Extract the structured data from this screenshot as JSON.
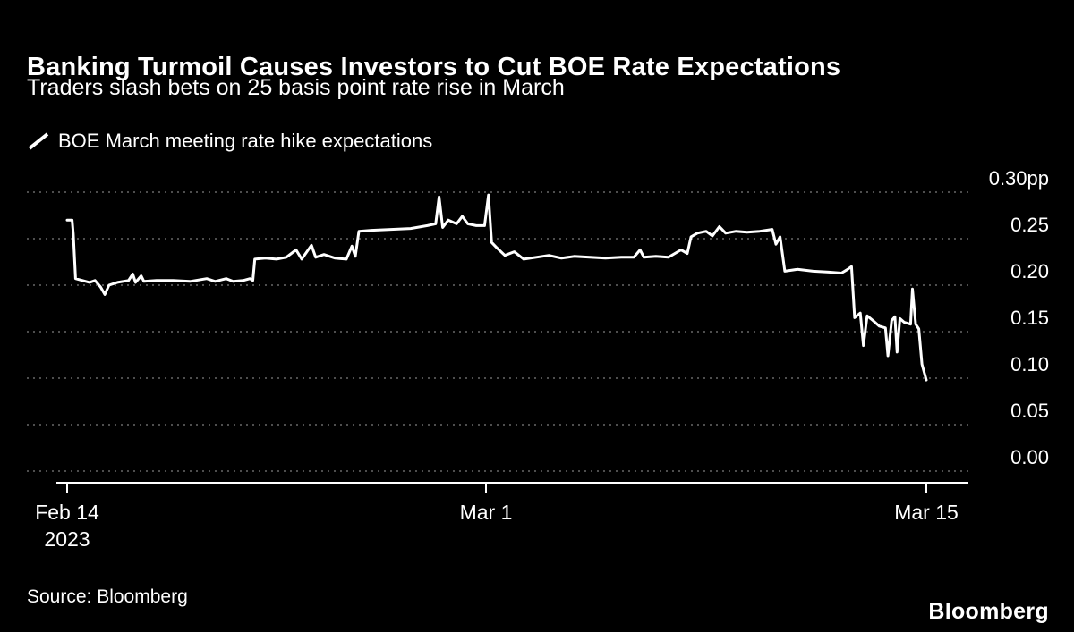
{
  "header": {
    "title": "Banking Turmoil Causes Investors to Cut BOE Rate Expectations",
    "subtitle": "Traders slash bets on 25 basis point rate rise in March"
  },
  "legend": {
    "label": "BOE March meeting rate hike expectations",
    "icon": "diagonal-line-sample-icon"
  },
  "footer": {
    "source": "Source: Bloomberg",
    "logo": "Bloomberg"
  },
  "colors": {
    "background": "#000000",
    "text": "#ffffff",
    "line": "#ffffff",
    "gridline": "#4e4e4e"
  },
  "chart_data": {
    "type": "line",
    "title": "Banking Turmoil Causes Investors to Cut BOE Rate Expectations",
    "subtitle": "Traders slash bets on 25 basis point rate rise in March",
    "legend_entries": [
      "BOE March meeting rate hike expectations"
    ],
    "ylabel": "pp",
    "ylim": [
      0.0,
      0.3
    ],
    "grid": "horizontal-dotted",
    "x_unit": "days since Feb 14, 2023",
    "y_ticks": [
      {
        "value": 0.3,
        "label": "0.30pp"
      },
      {
        "value": 0.25,
        "label": "0.25"
      },
      {
        "value": 0.2,
        "label": "0.20"
      },
      {
        "value": 0.15,
        "label": "0.15"
      },
      {
        "value": 0.1,
        "label": "0.10"
      },
      {
        "value": 0.05,
        "label": "0.05"
      },
      {
        "value": 0.0,
        "label": "0.00"
      }
    ],
    "x_ticks": [
      {
        "day": 0,
        "label": "Feb 14",
        "sublabel": "2023"
      },
      {
        "day": 15,
        "label": "Mar 1",
        "sublabel": ""
      },
      {
        "day": 29,
        "label": "Mar 15",
        "sublabel": ""
      }
    ],
    "series": [
      {
        "name": "BOE March meeting rate hike expectations",
        "points": [
          [
            0.0,
            0.27
          ],
          [
            0.18,
            0.27
          ],
          [
            0.22,
            0.255
          ],
          [
            0.3,
            0.207
          ],
          [
            0.55,
            0.205
          ],
          [
            0.8,
            0.203
          ],
          [
            1.0,
            0.205
          ],
          [
            1.2,
            0.198
          ],
          [
            1.35,
            0.19
          ],
          [
            1.5,
            0.2
          ],
          [
            1.8,
            0.203
          ],
          [
            2.2,
            0.205
          ],
          [
            2.35,
            0.212
          ],
          [
            2.45,
            0.203
          ],
          [
            2.65,
            0.21
          ],
          [
            2.75,
            0.204
          ],
          [
            3.2,
            0.205
          ],
          [
            3.8,
            0.205
          ],
          [
            4.4,
            0.204
          ],
          [
            5.0,
            0.207
          ],
          [
            5.3,
            0.204
          ],
          [
            5.7,
            0.207
          ],
          [
            5.95,
            0.204
          ],
          [
            6.3,
            0.205
          ],
          [
            6.55,
            0.207
          ],
          [
            6.65,
            0.205
          ],
          [
            6.72,
            0.228
          ],
          [
            7.1,
            0.229
          ],
          [
            7.5,
            0.228
          ],
          [
            7.85,
            0.23
          ],
          [
            8.2,
            0.238
          ],
          [
            8.4,
            0.228
          ],
          [
            8.75,
            0.243
          ],
          [
            8.9,
            0.23
          ],
          [
            9.2,
            0.233
          ],
          [
            9.6,
            0.229
          ],
          [
            10.0,
            0.228
          ],
          [
            10.2,
            0.242
          ],
          [
            10.32,
            0.231
          ],
          [
            10.45,
            0.258
          ],
          [
            10.9,
            0.259
          ],
          [
            11.6,
            0.26
          ],
          [
            12.3,
            0.261
          ],
          [
            12.9,
            0.264
          ],
          [
            13.2,
            0.266
          ],
          [
            13.32,
            0.295
          ],
          [
            13.45,
            0.262
          ],
          [
            13.65,
            0.27
          ],
          [
            13.95,
            0.266
          ],
          [
            14.15,
            0.274
          ],
          [
            14.35,
            0.266
          ],
          [
            14.65,
            0.264
          ],
          [
            14.95,
            0.264
          ],
          [
            15.08,
            0.297
          ],
          [
            15.18,
            0.246
          ],
          [
            15.35,
            0.24
          ],
          [
            15.6,
            0.232
          ],
          [
            15.9,
            0.236
          ],
          [
            16.2,
            0.228
          ],
          [
            16.6,
            0.23
          ],
          [
            17.0,
            0.232
          ],
          [
            17.4,
            0.229
          ],
          [
            17.8,
            0.231
          ],
          [
            18.3,
            0.23
          ],
          [
            18.8,
            0.229
          ],
          [
            19.3,
            0.23
          ],
          [
            19.7,
            0.23
          ],
          [
            19.9,
            0.238
          ],
          [
            20.02,
            0.23
          ],
          [
            20.4,
            0.231
          ],
          [
            20.8,
            0.23
          ],
          [
            21.2,
            0.238
          ],
          [
            21.4,
            0.234
          ],
          [
            21.52,
            0.252
          ],
          [
            21.72,
            0.256
          ],
          [
            22.0,
            0.258
          ],
          [
            22.2,
            0.253
          ],
          [
            22.42,
            0.263
          ],
          [
            22.62,
            0.256
          ],
          [
            22.95,
            0.258
          ],
          [
            23.3,
            0.257
          ],
          [
            23.7,
            0.258
          ],
          [
            24.1,
            0.26
          ],
          [
            24.22,
            0.244
          ],
          [
            24.35,
            0.252
          ],
          [
            24.5,
            0.215
          ],
          [
            24.9,
            0.217
          ],
          [
            25.4,
            0.215
          ],
          [
            25.9,
            0.214
          ],
          [
            26.3,
            0.213
          ],
          [
            26.5,
            0.217
          ],
          [
            26.62,
            0.22
          ],
          [
            26.72,
            0.165
          ],
          [
            26.9,
            0.17
          ],
          [
            27.0,
            0.135
          ],
          [
            27.12,
            0.167
          ],
          [
            27.3,
            0.162
          ],
          [
            27.5,
            0.156
          ],
          [
            27.7,
            0.154
          ],
          [
            27.78,
            0.124
          ],
          [
            27.9,
            0.162
          ],
          [
            28.0,
            0.166
          ],
          [
            28.07,
            0.128
          ],
          [
            28.16,
            0.164
          ],
          [
            28.3,
            0.16
          ],
          [
            28.5,
            0.158
          ],
          [
            28.56,
            0.196
          ],
          [
            28.66,
            0.158
          ],
          [
            28.76,
            0.153
          ],
          [
            28.86,
            0.115
          ],
          [
            29.0,
            0.098
          ]
        ]
      }
    ]
  }
}
